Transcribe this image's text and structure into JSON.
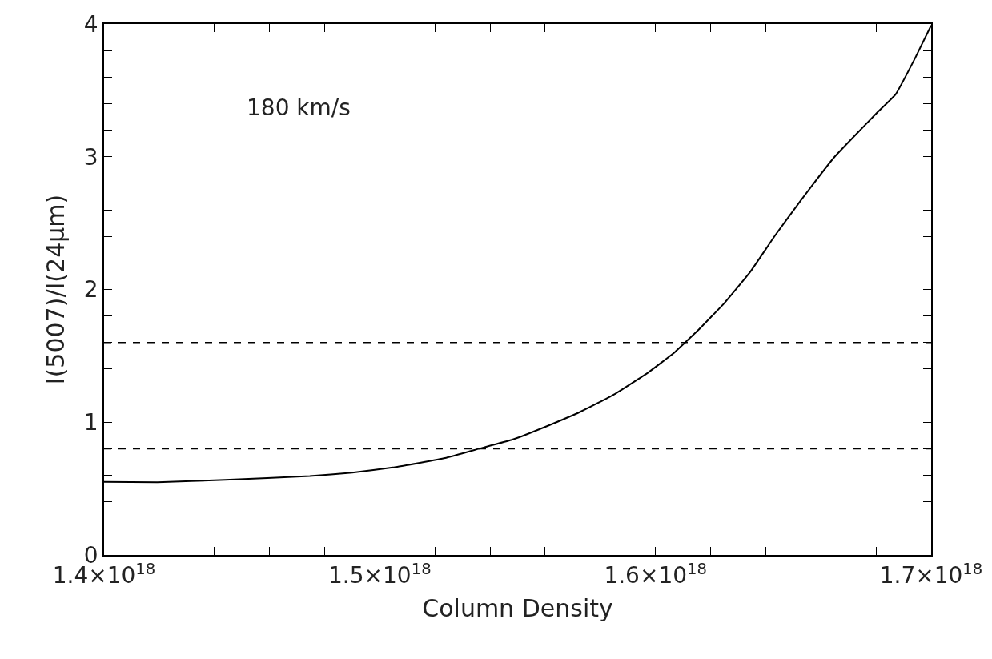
{
  "chart_data": {
    "type": "line",
    "xlabel": "Column Density",
    "ylabel": "I(5007)/I(24μm)",
    "annotations": [
      "180 km/s"
    ],
    "x": [
      1.4e+18,
      1.4193e+18,
      1.4439e+18,
      1.4746e+18,
      1.49e+18,
      1.5053e+18,
      1.5237e+18,
      1.536e+18,
      1.5483e+18,
      1.5606e+18,
      1.5729e+18,
      1.5851e+18,
      1.5974e+18,
      1.6066e+18,
      1.6158e+18,
      1.6251e+18,
      1.6343e+18,
      1.6435e+18,
      1.6527e+18,
      1.665e+18,
      1.6742e+18,
      1.6803e+18,
      1.6871e+18,
      1.6941e+18,
      1.7e+18
    ],
    "series": [
      {
        "color": "#000000",
        "values": [
          0.55,
          0.548,
          0.565,
          0.595,
          0.62,
          0.66,
          0.73,
          0.8,
          0.87,
          0.97,
          1.08,
          1.21,
          1.375,
          1.52,
          1.7,
          1.9,
          2.13,
          2.41,
          2.67,
          3.0,
          3.2,
          3.33,
          3.47,
          3.74,
          3.99
        ]
      }
    ],
    "xlim": [
      1.4e+18,
      1.7e+18
    ],
    "ylim": [
      0,
      4
    ],
    "xticks": [
      {
        "value": 1.4e+18,
        "label": "1.4×10$^{18}$"
      },
      {
        "value": 1.42e+18,
        "label": null
      },
      {
        "value": 1.44e+18,
        "label": null
      },
      {
        "value": 1.46e+18,
        "label": null
      },
      {
        "value": 1.48e+18,
        "label": null
      },
      {
        "value": 1.5e+18,
        "label": "1.5×10$^{18}$"
      },
      {
        "value": 1.52e+18,
        "label": null
      },
      {
        "value": 1.54e+18,
        "label": null
      },
      {
        "value": 1.56e+18,
        "label": null
      },
      {
        "value": 1.58e+18,
        "label": null
      },
      {
        "value": 1.6e+18,
        "label": "1.6×10$^{18}$"
      },
      {
        "value": 1.62e+18,
        "label": null
      },
      {
        "value": 1.64e+18,
        "label": null
      },
      {
        "value": 1.66e+18,
        "label": null
      },
      {
        "value": 1.68e+18,
        "label": null
      },
      {
        "value": 1.7e+18,
        "label": "1.7×10$^{18}$"
      }
    ],
    "yticks": [
      0,
      {
        "value": 0.2,
        "label": null
      },
      {
        "value": 0.4,
        "label": null
      },
      {
        "value": 0.6,
        "label": null
      },
      {
        "value": 0.8,
        "label": null
      },
      1,
      {
        "value": 1.2,
        "label": null
      },
      {
        "value": 1.4,
        "label": null
      },
      {
        "value": 1.6,
        "label": null
      },
      {
        "value": 1.8,
        "label": null
      },
      2,
      {
        "value": 2.2,
        "label": null
      },
      {
        "value": 2.4,
        "label": null
      },
      {
        "value": 2.6,
        "label": null
      },
      {
        "value": 2.8,
        "label": null
      },
      3,
      {
        "value": 3.2,
        "label": null
      },
      {
        "value": 3.4,
        "label": null
      },
      {
        "value": 3.6,
        "label": null
      },
      {
        "value": 3.8,
        "label": null
      },
      4
    ],
    "ref_lines": [
      {
        "axis": "y",
        "value": 1.6,
        "line_style": "dashed"
      },
      {
        "axis": "y",
        "value": 0.8,
        "line_style": "dashed"
      }
    ],
    "marker": "none",
    "line_style": "solid"
  }
}
